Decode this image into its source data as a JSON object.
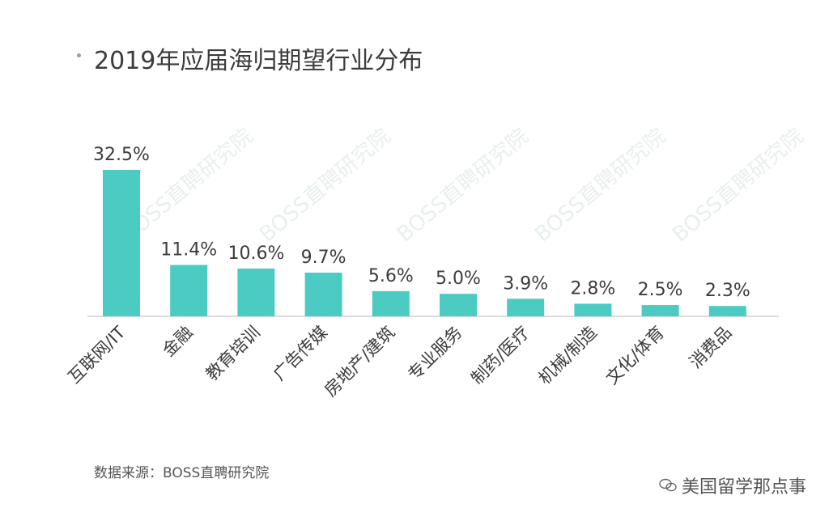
{
  "title": "2019年应届海归期望行业分布",
  "source": "数据来源：BOSS直聘研究院",
  "watermark": "美国留学那点事",
  "chart_data": {
    "type": "bar",
    "title": "2019年应届海归期望行业分布",
    "xlabel": "",
    "ylabel": "",
    "categories": [
      "互联网/IT",
      "金融",
      "教育培训",
      "广告传媒",
      "房地产/建筑",
      "专业服务",
      "制药/医疗",
      "机械/制造",
      "文化/体育",
      "消费品"
    ],
    "values": [
      32.5,
      11.4,
      10.6,
      9.7,
      5.6,
      5.0,
      3.9,
      2.8,
      2.5,
      2.3
    ],
    "value_labels": [
      "32.5%",
      "11.4%",
      "10.6%",
      "9.7%",
      "5.6%",
      "5.0%",
      "3.9%",
      "2.8%",
      "2.5%",
      "2.3%"
    ],
    "ylim": [
      0,
      35
    ],
    "grid": false,
    "bar_color": "#4ccbc3",
    "axis_color": "#d0d0d0",
    "background_watermark": "BOSS直聘研究院"
  }
}
